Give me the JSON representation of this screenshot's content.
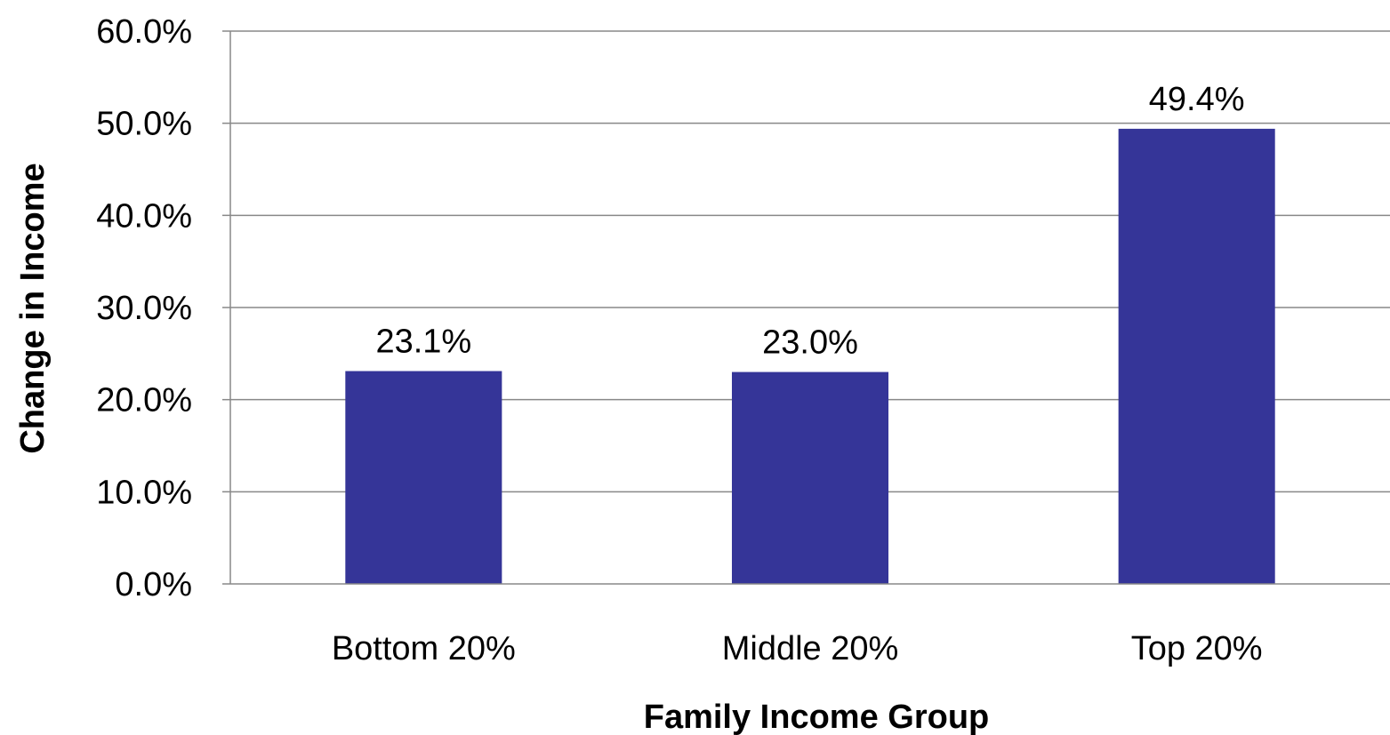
{
  "chart_data": {
    "type": "bar",
    "title": "",
    "xlabel": "Family Income Group",
    "ylabel": "Change in Income",
    "categories": [
      "Bottom 20%",
      "Middle 20%",
      "Top 20%"
    ],
    "values": [
      23.1,
      23.0,
      49.4
    ],
    "data_labels": [
      "23.1%",
      "23.0%",
      "49.4%"
    ],
    "ylim": [
      0,
      60
    ],
    "y_ticks": [
      0,
      10,
      20,
      30,
      40,
      50,
      60
    ],
    "y_tick_labels": [
      "0.0%",
      "10.0%",
      "20.0%",
      "30.0%",
      "40.0%",
      "50.0%",
      "60.0%"
    ],
    "grid": true,
    "legend": "none",
    "bar_color": "#353598",
    "grid_color": "#888888"
  }
}
